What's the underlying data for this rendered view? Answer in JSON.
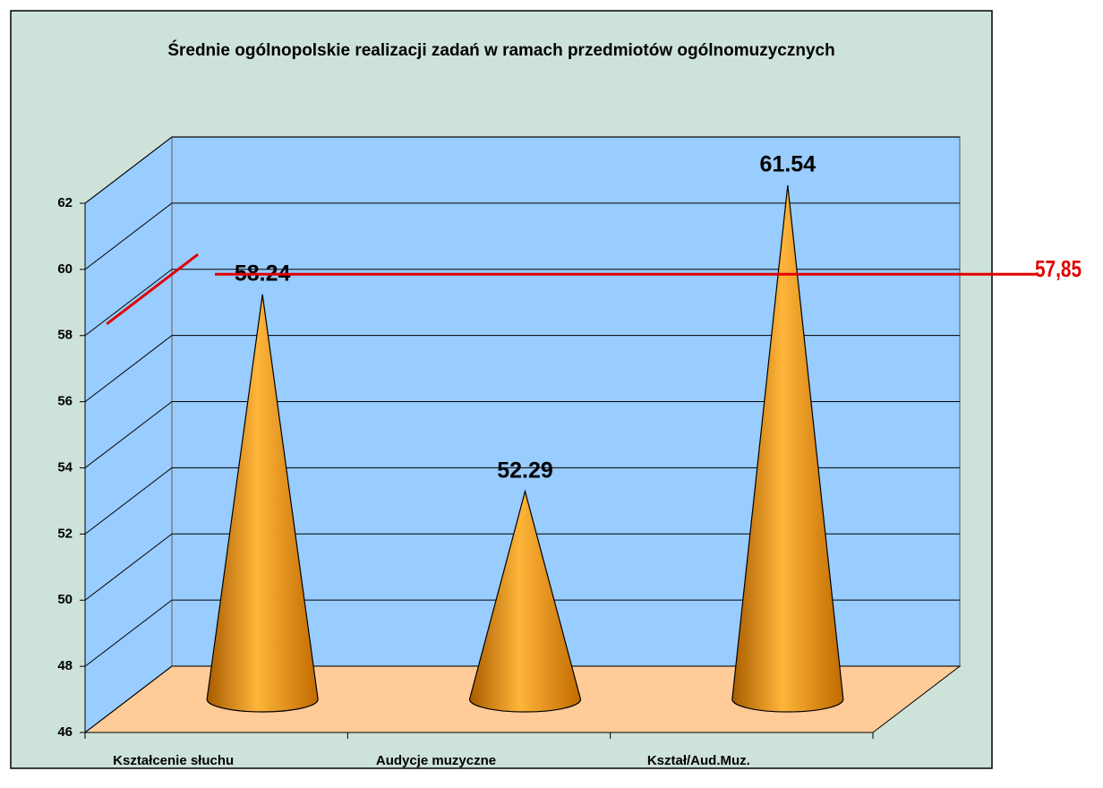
{
  "chart_data": {
    "type": "cone3d",
    "title": "Średnie ogólnopolskie realizacji zadań w ramach przedmiotów ogólnomuzycznych",
    "categories": [
      "Kształcenie słuchu",
      "Audycje muzyczne",
      "Kształ/Aud.Muz."
    ],
    "values": [
      58.24,
      52.29,
      61.54
    ],
    "color": "#f0920a",
    "ylim": [
      46,
      62
    ],
    "yticks": [
      46,
      48,
      50,
      52,
      54,
      56,
      58,
      60,
      62
    ],
    "grid": true,
    "reference_line": {
      "value": 57.85,
      "label": "57,85",
      "color": "#e00000"
    }
  }
}
